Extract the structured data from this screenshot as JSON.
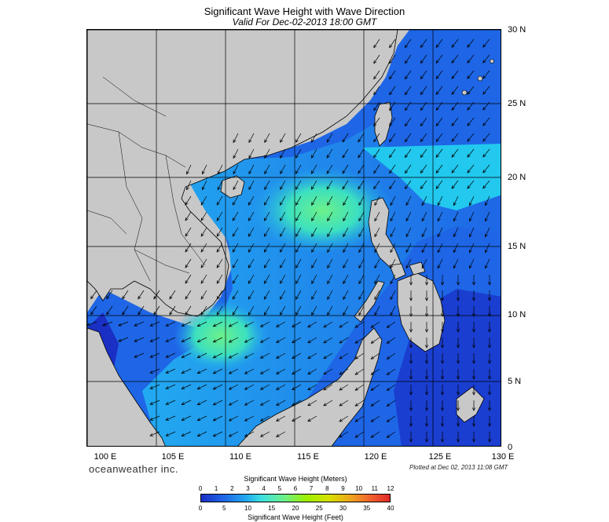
{
  "header": {
    "title": "Significant Wave Height with Wave Direction",
    "subtitle": "Valid For Dec-02-2013 18:00 GMT"
  },
  "map": {
    "lat_labels": [
      "30 N",
      "25 N",
      "20 N",
      "15 N",
      "10 N",
      "5 N",
      "0"
    ],
    "lon_labels": [
      "100 E",
      "105 E",
      "110 E",
      "115 E",
      "120 E",
      "125 E",
      "130 E"
    ],
    "colors": {
      "land": "#c8c8c8",
      "coast": "#000000",
      "grid": "#000000",
      "arrow": "#000000",
      "wave_low": "#1a2fc4",
      "wave_mid": "#22aaf0",
      "wave_high": "#6cf08a"
    }
  },
  "footer": {
    "brand": "oceanweather inc.",
    "plotted": "Plotted at Dec 02, 2013 11:08 GMT"
  },
  "colorbar": {
    "meters_label": "Significant Wave Height (Meters)",
    "feet_label": "Significant Wave Height (Feet)",
    "meters_ticks": [
      "0",
      "1",
      "2",
      "3",
      "4",
      "5",
      "6",
      "7",
      "8",
      "9",
      "10",
      "11",
      "12"
    ],
    "feet_ticks": [
      "0",
      "5",
      "10",
      "15",
      "20",
      "25",
      "30",
      "35",
      "40"
    ]
  }
}
